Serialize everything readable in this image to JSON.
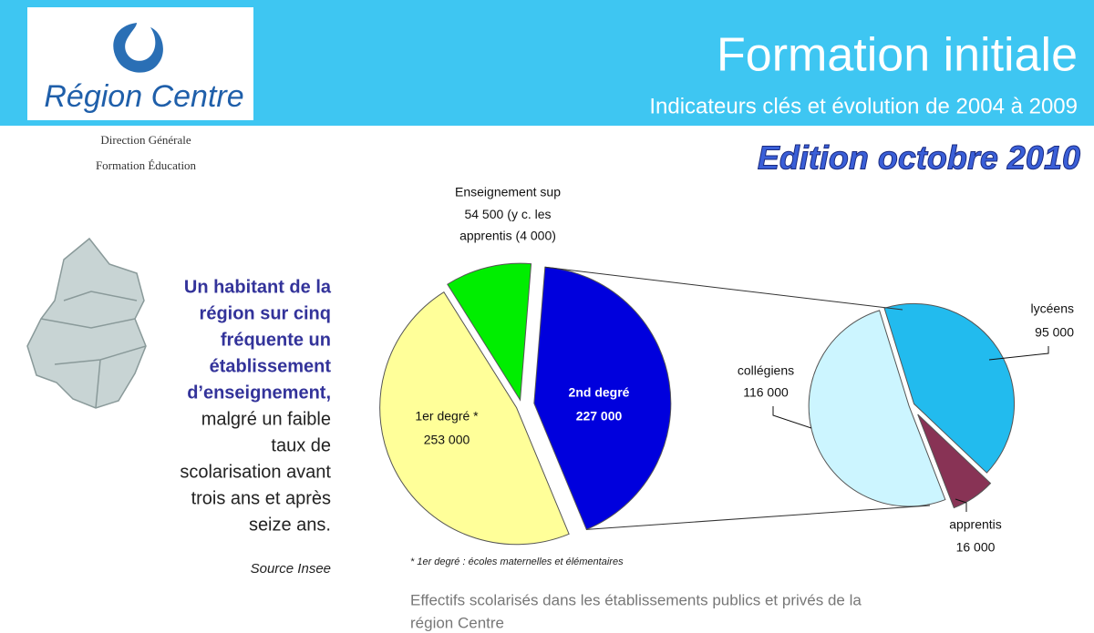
{
  "header": {
    "logo_text": "Région Centre",
    "title": "Formation initiale",
    "subtitle": "Indicateurs clés et évolution de 2004 à 2009",
    "department": [
      "Direction Générale",
      "Formation Éducation"
    ],
    "edition": "Edition octobre 2010"
  },
  "intro": {
    "bold_lines": [
      "Un habitant de la",
      "région sur cinq",
      "fréquente un",
      "établissement",
      "d’enseignement,"
    ],
    "normal_lines": [
      "malgré un faible",
      "taux de",
      "scolarisation avant",
      "trois ans et après",
      "seize ans."
    ],
    "source": "Source Insee"
  },
  "chart_data": {
    "type": "pie_of_pie",
    "categories": [
      "1er degré *",
      "2nd degré",
      "Enseignement sup"
    ],
    "values": [
      253000,
      227000,
      54500
    ],
    "value_labels": [
      "253 000",
      "227 000",
      "54 500"
    ],
    "colors": [
      "#ffff99",
      "#0000dd",
      "#00ee00"
    ],
    "sup_note": [
      "(y c. les",
      "apprentis (4 000)"
    ],
    "detail": {
      "of": "2nd degré",
      "categories": [
        "lycéens",
        "apprentis",
        "collégiens"
      ],
      "values": [
        95000,
        16000,
        116000
      ],
      "value_labels": [
        "95 000",
        "16 000",
        "116 000"
      ],
      "colors": [
        "#22bbee",
        "#883355",
        "#ccf5ff"
      ]
    },
    "footnote": "* 1er degré : écoles maternelles et élémentaires",
    "caption": [
      "Effectifs scolarisés dans les établissements publics et privés de la",
      "région Centre"
    ]
  }
}
